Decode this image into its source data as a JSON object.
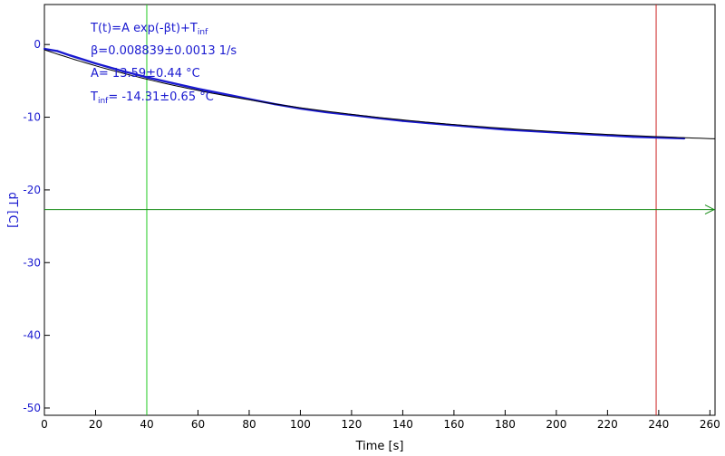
{
  "chart_data": {
    "type": "line",
    "xlabel": "Time [s]",
    "ylabel": "dT [C]",
    "xlim": [
      0,
      262
    ],
    "ylim": [
      -51,
      5.5
    ],
    "xticks": [
      0,
      20,
      40,
      60,
      80,
      100,
      120,
      140,
      160,
      180,
      200,
      220,
      240,
      260
    ],
    "yticks": [
      0,
      -10,
      -20,
      -30,
      -40,
      -50
    ],
    "grid": false,
    "series": [
      {
        "kind": "measured",
        "color": "#1a1ad0",
        "x": [
          0,
          5,
          10,
          20,
          30,
          40,
          50,
          60,
          70,
          80,
          90,
          100,
          110,
          120,
          130,
          140,
          150,
          160,
          170,
          180,
          190,
          200,
          210,
          220,
          230,
          240,
          250
        ],
        "y": [
          -0.6,
          -0.9,
          -1.5,
          -2.6,
          -3.6,
          -4.5,
          -5.3,
          -6.1,
          -6.8,
          -7.5,
          -8.2,
          -8.8,
          -9.3,
          -9.7,
          -10.1,
          -10.5,
          -10.8,
          -11.1,
          -11.4,
          -11.7,
          -11.9,
          -12.1,
          -12.3,
          -12.5,
          -12.7,
          -12.8,
          -12.9
        ]
      },
      {
        "kind": "fit",
        "color": "#000000",
        "model": {
          "A": 13.59,
          "beta": 0.008839,
          "T_inf": -14.31
        },
        "x_range": [
          0,
          262
        ]
      }
    ],
    "markers": {
      "vline_green_x": 40,
      "vline_red_x": 239,
      "hline_green_y": -22.7,
      "green_color": "#22cc22",
      "hline_color": "#118811",
      "red_color": "#cc2222"
    },
    "annotation": {
      "line1": "T(t)=A exp(-βt)+T",
      "line1_sub": "inf",
      "line2": "β=0.008839±0.0013 1/s",
      "line3": "A= 13.59±0.44 °C",
      "line4_pre": "T",
      "line4_sub": "inf",
      "line4_post": "= -14.31±0.65 °C"
    }
  }
}
